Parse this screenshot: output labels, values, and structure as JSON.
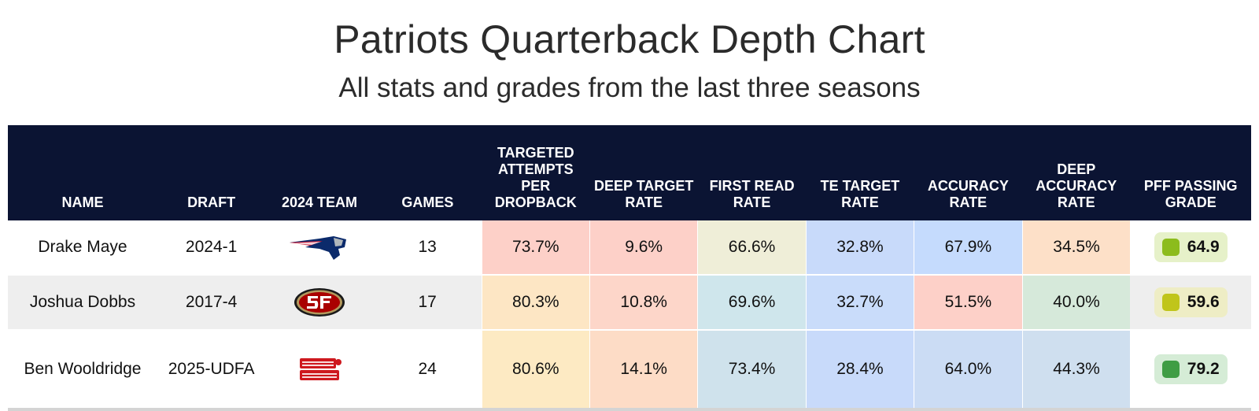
{
  "title": "Patriots Quarterback Depth Chart",
  "subtitle": "All stats and grades from the last three seasons",
  "chart_data": {
    "type": "table",
    "columns": [
      "NAME",
      "DRAFT",
      "2024 TEAM",
      "GAMES",
      "TARGETED ATTEMPTS PER DROPBACK",
      "DEEP TARGET RATE",
      "FIRST READ RATE",
      "TE TARGET RATE",
      "ACCURACY RATE",
      "DEEP ACCURACY RATE",
      "PFF PASSING GRADE"
    ],
    "rows": [
      {
        "name": "Drake Maye",
        "draft": "2024-1",
        "team_logo": "patriots-logo-icon",
        "games": "13",
        "stats": [
          "73.7%",
          "9.6%",
          "66.6%",
          "32.8%",
          "67.9%",
          "34.5%"
        ],
        "stat_colors": [
          "#fdd0c8",
          "#fdd0c8",
          "#efeed8",
          "#c8dafa",
          "#c5dbfd",
          "#fde0c8"
        ],
        "grade": "64.9",
        "grade_bg": "#e6f1c9",
        "grade_color": "#8cbc1d"
      },
      {
        "name": "Joshua Dobbs",
        "draft": "2017-4",
        "team_logo": "49ers-logo-icon",
        "games": "17",
        "stats": [
          "80.3%",
          "10.8%",
          "69.6%",
          "32.7%",
          "51.5%",
          "40.0%"
        ],
        "stat_colors": [
          "#fde6c4",
          "#fdd6c9",
          "#cfe6ec",
          "#c9dcfa",
          "#fdd0c8",
          "#d6e9da"
        ],
        "grade": "59.6",
        "grade_bg": "#eeedc5",
        "grade_color": "#c0c51a"
      },
      {
        "name": "Ben Wooldridge",
        "draft": "2025-UDFA",
        "team_logo": "ragin-cajuns-logo-icon",
        "games": "24",
        "stats": [
          "80.6%",
          "14.1%",
          "73.4%",
          "28.4%",
          "64.0%",
          "44.3%"
        ],
        "stat_colors": [
          "#fdeac3",
          "#fddcc6",
          "#cfe2ec",
          "#c8dafa",
          "#cbdcf4",
          "#cfdfef"
        ],
        "grade": "79.2",
        "grade_bg": "#d5ecd6",
        "grade_color": "#3f9d44"
      }
    ]
  }
}
